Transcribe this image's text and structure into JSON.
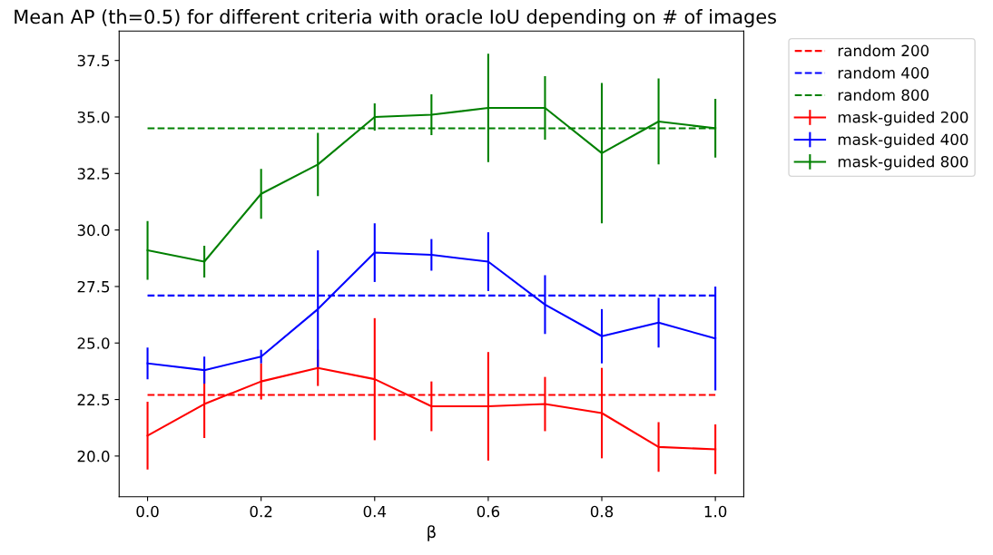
{
  "chart_data": {
    "type": "line",
    "title": "Mean AP (th=0.5) for different criteria with oracle IoU depending on # of images",
    "xlabel": "β",
    "x": [
      0.0,
      0.1,
      0.2,
      0.3,
      0.4,
      0.5,
      0.6,
      0.7,
      0.8,
      0.9,
      1.0
    ],
    "series": [
      {
        "name": "random 200",
        "color": "#ff0000",
        "line_style": "dashed",
        "values": [
          22.7,
          22.7,
          22.7,
          22.7,
          22.7,
          22.7,
          22.7,
          22.7,
          22.7,
          22.7,
          22.7
        ]
      },
      {
        "name": "random 400",
        "color": "#0000ff",
        "line_style": "dashed",
        "values": [
          27.1,
          27.1,
          27.1,
          27.1,
          27.1,
          27.1,
          27.1,
          27.1,
          27.1,
          27.1,
          27.1
        ]
      },
      {
        "name": "random 800",
        "color": "#008000",
        "line_style": "dashed",
        "values": [
          34.5,
          34.5,
          34.5,
          34.5,
          34.5,
          34.5,
          34.5,
          34.5,
          34.5,
          34.5,
          34.5
        ]
      },
      {
        "name": "mask-guided 200",
        "color": "#ff0000",
        "line_style": "solid",
        "values": [
          20.9,
          22.3,
          23.3,
          23.9,
          23.4,
          22.2,
          22.2,
          22.3,
          21.9,
          20.4,
          20.3
        ],
        "errors": [
          1.5,
          1.5,
          0.8,
          0.8,
          2.7,
          1.1,
          2.4,
          1.2,
          2.0,
          1.1,
          1.1
        ]
      },
      {
        "name": "mask-guided 400",
        "color": "#0000ff",
        "line_style": "solid",
        "values": [
          24.1,
          23.8,
          24.4,
          26.5,
          29.0,
          28.9,
          28.6,
          26.7,
          25.3,
          25.9,
          25.2
        ],
        "errors": [
          0.7,
          0.6,
          0.3,
          2.6,
          1.3,
          0.7,
          1.3,
          1.3,
          1.2,
          1.1,
          2.3
        ]
      },
      {
        "name": "mask-guided 800",
        "color": "#008000",
        "line_style": "solid",
        "values": [
          29.1,
          28.6,
          31.6,
          32.9,
          35.0,
          35.1,
          35.4,
          35.4,
          33.4,
          34.8,
          34.5
        ],
        "errors": [
          1.3,
          0.7,
          1.1,
          1.4,
          0.6,
          0.9,
          2.4,
          1.4,
          3.1,
          1.9,
          1.3
        ]
      }
    ],
    "xlim": [
      -0.05,
      1.05
    ],
    "ylim": [
      18.2,
      38.8
    ],
    "xticks": [
      {
        "value": 0.0,
        "label": "0.0"
      },
      {
        "value": 0.2,
        "label": "0.2"
      },
      {
        "value": 0.4,
        "label": "0.4"
      },
      {
        "value": 0.6,
        "label": "0.6"
      },
      {
        "value": 0.8,
        "label": "0.8"
      },
      {
        "value": 1.0,
        "label": "1.0"
      }
    ],
    "yticks": [
      {
        "value": 20,
        "label": "20.0"
      },
      {
        "value": 22.5,
        "label": "22.5"
      },
      {
        "value": 25,
        "label": "25.0"
      },
      {
        "value": 27.5,
        "label": "27.5"
      },
      {
        "value": 30,
        "label": "30.0"
      },
      {
        "value": 32.5,
        "label": "32.5"
      },
      {
        "value": 35,
        "label": "35.0"
      },
      {
        "value": 37.5,
        "label": "37.5"
      }
    ],
    "grid": false,
    "legend": "top right"
  }
}
